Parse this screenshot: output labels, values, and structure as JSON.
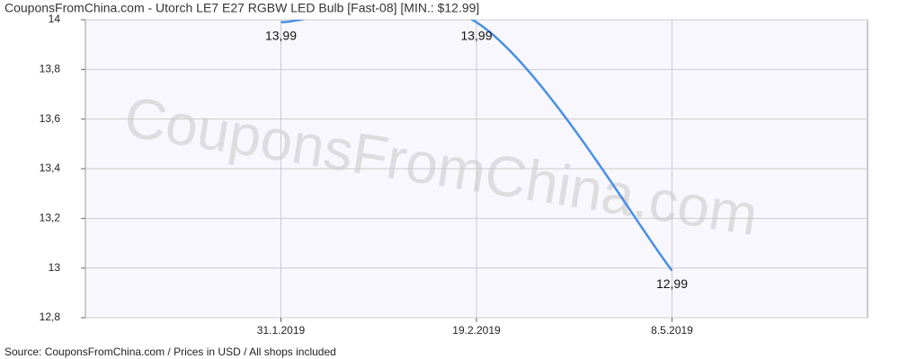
{
  "chart_data": {
    "type": "line",
    "title": "CouponsFromChina.com - Utorch LE7 E27 RGBW LED Bulb [Fast-08] [MIN.: $12.99]",
    "watermark": "CouponsFromChina.com",
    "source": "Source: CouponsFromChina.com / Prices in USD / All shops included",
    "categories": [
      "31.1.2019",
      "19.2.2019",
      "8.5.2019"
    ],
    "series": [
      {
        "color": "#4a8fe3",
        "values": [
          13.99,
          13.99,
          12.99
        ],
        "value_labels": [
          "13,99",
          "13,99",
          "12,99"
        ]
      }
    ],
    "ylim": [
      12.8,
      14
    ],
    "yticks": [
      {
        "value": 12.8,
        "label": "12,8"
      },
      13,
      {
        "value": 13.2,
        "label": "13,2"
      },
      {
        "value": 13.4,
        "label": "13,4"
      },
      {
        "value": 13.6,
        "label": "13,6"
      },
      {
        "value": 13.8,
        "label": "13,8"
      },
      14
    ],
    "grid": true
  }
}
